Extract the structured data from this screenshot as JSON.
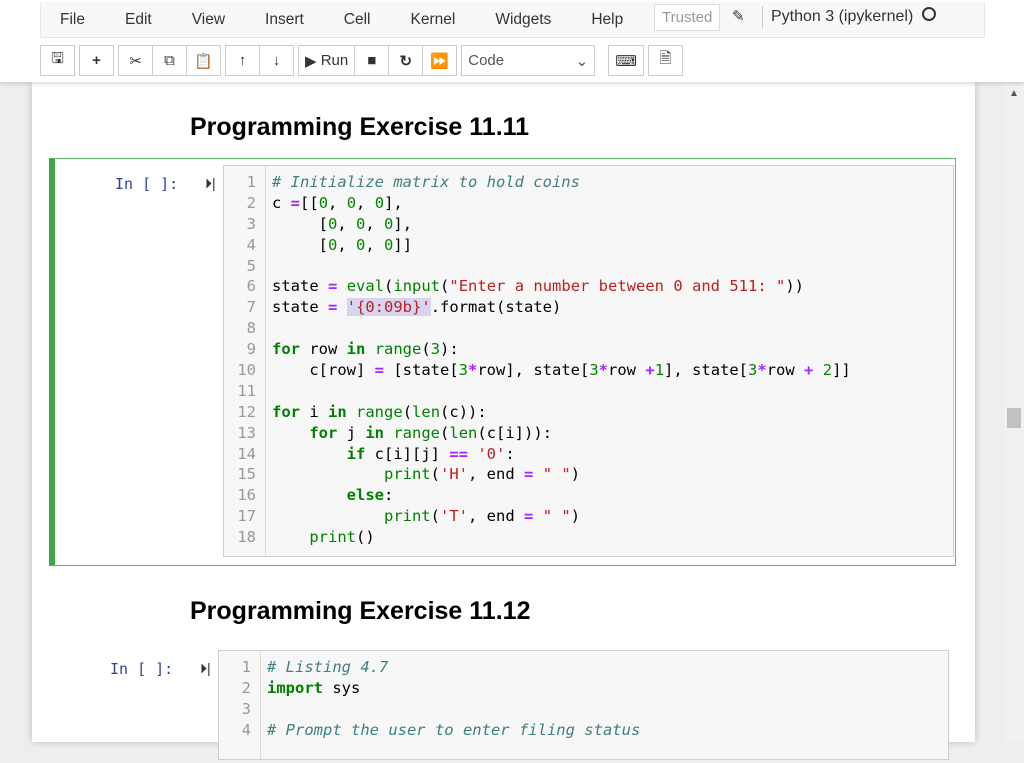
{
  "menu": [
    "File",
    "Edit",
    "View",
    "Insert",
    "Cell",
    "Kernel",
    "Widgets",
    "Help"
  ],
  "trusted": "Trusted",
  "kernel": "Python 3 (ipykernel)",
  "toolbar": {
    "run": "Run",
    "cell_type": "Code"
  },
  "accent": "#42a545",
  "cells": [
    {
      "heading": "Programming Exercise 11.11",
      "prompt": "In [ ]:",
      "lines": [
        [
          [
            "c",
            "# Initialize matrix to hold coins"
          ]
        ],
        [
          [
            "",
            "c "
          ],
          [
            "o",
            "="
          ],
          [
            "",
            "[["
          ],
          [
            "n",
            "0"
          ],
          [
            "",
            ", "
          ],
          [
            "n",
            "0"
          ],
          [
            "",
            ", "
          ],
          [
            "n",
            "0"
          ],
          [
            "",
            "],"
          ]
        ],
        [
          [
            "",
            "     ["
          ],
          [
            "n",
            "0"
          ],
          [
            "",
            ", "
          ],
          [
            "n",
            "0"
          ],
          [
            "",
            ", "
          ],
          [
            "n",
            "0"
          ],
          [
            "",
            "],"
          ]
        ],
        [
          [
            "",
            "     ["
          ],
          [
            "n",
            "0"
          ],
          [
            "",
            ", "
          ],
          [
            "n",
            "0"
          ],
          [
            "",
            ", "
          ],
          [
            "n",
            "0"
          ],
          [
            "",
            "]]"
          ]
        ],
        [],
        [
          [
            "",
            "state "
          ],
          [
            "o",
            "="
          ],
          [
            "",
            " "
          ],
          [
            "b",
            "eval"
          ],
          [
            "",
            "("
          ],
          [
            "b",
            "input"
          ],
          [
            "",
            "("
          ],
          [
            "s",
            "\"Enter a number between 0 and 511: \""
          ],
          [
            "",
            "))"
          ]
        ],
        [
          [
            "",
            "state "
          ],
          [
            "o",
            "="
          ],
          [
            "",
            " "
          ],
          [
            "h",
            "'{0:09b}'"
          ],
          [
            "",
            ".format(state)"
          ]
        ],
        [],
        [
          [
            "k",
            "for"
          ],
          [
            "",
            " row "
          ],
          [
            "k",
            "in"
          ],
          [
            "",
            " "
          ],
          [
            "b",
            "range"
          ],
          [
            "",
            "("
          ],
          [
            "n",
            "3"
          ],
          [
            "",
            "):"
          ]
        ],
        [
          [
            "",
            "    c[row] "
          ],
          [
            "o",
            "="
          ],
          [
            "",
            " [state["
          ],
          [
            "n",
            "3"
          ],
          [
            "o",
            "*"
          ],
          [
            "",
            "row], state["
          ],
          [
            "n",
            "3"
          ],
          [
            "o",
            "*"
          ],
          [
            "",
            "row "
          ],
          [
            "o",
            "+"
          ],
          [
            "n",
            "1"
          ],
          [
            "",
            "], state["
          ],
          [
            "n",
            "3"
          ],
          [
            "o",
            "*"
          ],
          [
            "",
            "row "
          ],
          [
            "o",
            "+"
          ],
          [
            "",
            " "
          ],
          [
            "n",
            "2"
          ],
          [
            "",
            "]]"
          ]
        ],
        [],
        [
          [
            "k",
            "for"
          ],
          [
            "",
            " i "
          ],
          [
            "k",
            "in"
          ],
          [
            "",
            " "
          ],
          [
            "b",
            "range"
          ],
          [
            "",
            "("
          ],
          [
            "b",
            "len"
          ],
          [
            "",
            "(c)):"
          ]
        ],
        [
          [
            "",
            "    "
          ],
          [
            "k",
            "for"
          ],
          [
            "",
            " j "
          ],
          [
            "k",
            "in"
          ],
          [
            "",
            " "
          ],
          [
            "b",
            "range"
          ],
          [
            "",
            "("
          ],
          [
            "b",
            "len"
          ],
          [
            "",
            "(c[i])):"
          ]
        ],
        [
          [
            "",
            "        "
          ],
          [
            "k",
            "if"
          ],
          [
            "",
            " c[i][j] "
          ],
          [
            "o",
            "=="
          ],
          [
            "",
            " "
          ],
          [
            "s",
            "'0'"
          ],
          [
            "",
            ":"
          ]
        ],
        [
          [
            "",
            "            "
          ],
          [
            "b",
            "print"
          ],
          [
            "",
            "("
          ],
          [
            "s",
            "'H'"
          ],
          [
            "",
            ", end "
          ],
          [
            "o",
            "="
          ],
          [
            "",
            " "
          ],
          [
            "s",
            "\" \""
          ],
          [
            "",
            ")"
          ]
        ],
        [
          [
            "",
            "        "
          ],
          [
            "k",
            "else"
          ],
          [
            "",
            ":"
          ]
        ],
        [
          [
            "",
            "            "
          ],
          [
            "b",
            "print"
          ],
          [
            "",
            "("
          ],
          [
            "s",
            "'T'"
          ],
          [
            "",
            ", end "
          ],
          [
            "o",
            "="
          ],
          [
            "",
            " "
          ],
          [
            "s",
            "\" \""
          ],
          [
            "",
            ")"
          ]
        ],
        [
          [
            "",
            "    "
          ],
          [
            "b",
            "print"
          ],
          [
            "",
            "()"
          ]
        ]
      ]
    },
    {
      "heading": "Programming Exercise 11.12",
      "prompt": "In [ ]:",
      "lines": [
        [
          [
            "c",
            "# Listing 4.7"
          ]
        ],
        [
          [
            "k",
            "import"
          ],
          [
            "",
            " sys"
          ]
        ],
        [],
        [
          [
            "c",
            "# Prompt the user to enter filing status"
          ]
        ]
      ]
    }
  ]
}
